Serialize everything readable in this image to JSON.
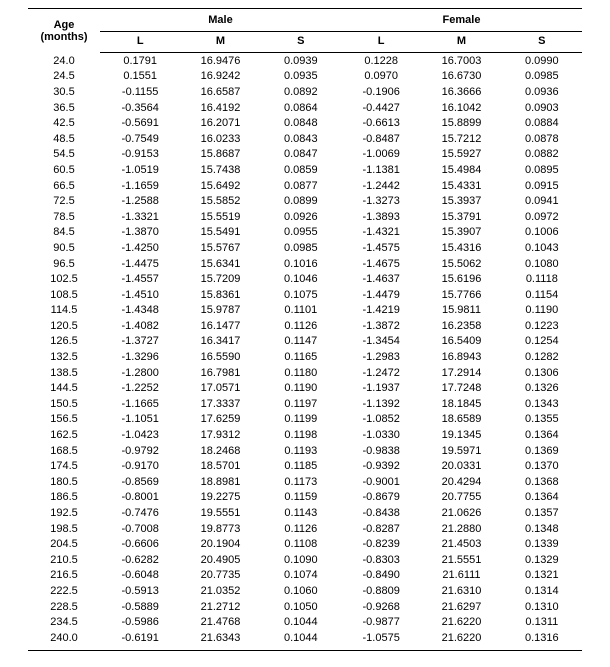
{
  "headers": {
    "age_line1": "Age",
    "age_line2": "(months)",
    "male": "Male",
    "female": "Female",
    "L": "L",
    "M": "M",
    "S": "S"
  },
  "rows": [
    {
      "age": "24.0",
      "ml": "0.1791",
      "mm": "16.9476",
      "ms": "0.0939",
      "fl": "0.1228",
      "fm": "16.7003",
      "fs": "0.0990"
    },
    {
      "age": "24.5",
      "ml": "0.1551",
      "mm": "16.9242",
      "ms": "0.0935",
      "fl": "0.0970",
      "fm": "16.6730",
      "fs": "0.0985"
    },
    {
      "age": "30.5",
      "ml": "-0.1155",
      "mm": "16.6587",
      "ms": "0.0892",
      "fl": "-0.1906",
      "fm": "16.3666",
      "fs": "0.0936"
    },
    {
      "age": "36.5",
      "ml": "-0.3564",
      "mm": "16.4192",
      "ms": "0.0864",
      "fl": "-0.4427",
      "fm": "16.1042",
      "fs": "0.0903"
    },
    {
      "age": "42.5",
      "ml": "-0.5691",
      "mm": "16.2071",
      "ms": "0.0848",
      "fl": "-0.6613",
      "fm": "15.8899",
      "fs": "0.0884"
    },
    {
      "age": "48.5",
      "ml": "-0.7549",
      "mm": "16.0233",
      "ms": "0.0843",
      "fl": "-0.8487",
      "fm": "15.7212",
      "fs": "0.0878"
    },
    {
      "age": "54.5",
      "ml": "-0.9153",
      "mm": "15.8687",
      "ms": "0.0847",
      "fl": "-1.0069",
      "fm": "15.5927",
      "fs": "0.0882"
    },
    {
      "age": "60.5",
      "ml": "-1.0519",
      "mm": "15.7438",
      "ms": "0.0859",
      "fl": "-1.1381",
      "fm": "15.4984",
      "fs": "0.0895"
    },
    {
      "age": "66.5",
      "ml": "-1.1659",
      "mm": "15.6492",
      "ms": "0.0877",
      "fl": "-1.2442",
      "fm": "15.4331",
      "fs": "0.0915"
    },
    {
      "age": "72.5",
      "ml": "-1.2588",
      "mm": "15.5852",
      "ms": "0.0899",
      "fl": "-1.3273",
      "fm": "15.3937",
      "fs": "0.0941"
    },
    {
      "age": "78.5",
      "ml": "-1.3321",
      "mm": "15.5519",
      "ms": "0.0926",
      "fl": "-1.3893",
      "fm": "15.3791",
      "fs": "0.0972"
    },
    {
      "age": "84.5",
      "ml": "-1.3870",
      "mm": "15.5491",
      "ms": "0.0955",
      "fl": "-1.4321",
      "fm": "15.3907",
      "fs": "0.1006"
    },
    {
      "age": "90.5",
      "ml": "-1.4250",
      "mm": "15.5767",
      "ms": "0.0985",
      "fl": "-1.4575",
      "fm": "15.4316",
      "fs": "0.1043"
    },
    {
      "age": "96.5",
      "ml": "-1.4475",
      "mm": "15.6341",
      "ms": "0.1016",
      "fl": "-1.4675",
      "fm": "15.5062",
      "fs": "0.1080"
    },
    {
      "age": "102.5",
      "ml": "-1.4557",
      "mm": "15.7209",
      "ms": "0.1046",
      "fl": "-1.4637",
      "fm": "15.6196",
      "fs": "0.1118"
    },
    {
      "age": "108.5",
      "ml": "-1.4510",
      "mm": "15.8361",
      "ms": "0.1075",
      "fl": "-1.4479",
      "fm": "15.7766",
      "fs": "0.1154"
    },
    {
      "age": "114.5",
      "ml": "-1.4348",
      "mm": "15.9787",
      "ms": "0.1101",
      "fl": "-1.4219",
      "fm": "15.9811",
      "fs": "0.1190"
    },
    {
      "age": "120.5",
      "ml": "-1.4082",
      "mm": "16.1477",
      "ms": "0.1126",
      "fl": "-1.3872",
      "fm": "16.2358",
      "fs": "0.1223"
    },
    {
      "age": "126.5",
      "ml": "-1.3727",
      "mm": "16.3417",
      "ms": "0.1147",
      "fl": "-1.3454",
      "fm": "16.5409",
      "fs": "0.1254"
    },
    {
      "age": "132.5",
      "ml": "-1.3296",
      "mm": "16.5590",
      "ms": "0.1165",
      "fl": "-1.2983",
      "fm": "16.8943",
      "fs": "0.1282"
    },
    {
      "age": "138.5",
      "ml": "-1.2800",
      "mm": "16.7981",
      "ms": "0.1180",
      "fl": "-1.2472",
      "fm": "17.2914",
      "fs": "0.1306"
    },
    {
      "age": "144.5",
      "ml": "-1.2252",
      "mm": "17.0571",
      "ms": "0.1190",
      "fl": "-1.1937",
      "fm": "17.7248",
      "fs": "0.1326"
    },
    {
      "age": "150.5",
      "ml": "-1.1665",
      "mm": "17.3337",
      "ms": "0.1197",
      "fl": "-1.1392",
      "fm": "18.1845",
      "fs": "0.1343"
    },
    {
      "age": "156.5",
      "ml": "-1.1051",
      "mm": "17.6259",
      "ms": "0.1199",
      "fl": "-1.0852",
      "fm": "18.6589",
      "fs": "0.1355"
    },
    {
      "age": "162.5",
      "ml": "-1.0423",
      "mm": "17.9312",
      "ms": "0.1198",
      "fl": "-1.0330",
      "fm": "19.1345",
      "fs": "0.1364"
    },
    {
      "age": "168.5",
      "ml": "-0.9792",
      "mm": "18.2468",
      "ms": "0.1193",
      "fl": "-0.9838",
      "fm": "19.5971",
      "fs": "0.1369"
    },
    {
      "age": "174.5",
      "ml": "-0.9170",
      "mm": "18.5701",
      "ms": "0.1185",
      "fl": "-0.9392",
      "fm": "20.0331",
      "fs": "0.1370"
    },
    {
      "age": "180.5",
      "ml": "-0.8569",
      "mm": "18.8981",
      "ms": "0.1173",
      "fl": "-0.9001",
      "fm": "20.4294",
      "fs": "0.1368"
    },
    {
      "age": "186.5",
      "ml": "-0.8001",
      "mm": "19.2275",
      "ms": "0.1159",
      "fl": "-0.8679",
      "fm": "20.7755",
      "fs": "0.1364"
    },
    {
      "age": "192.5",
      "ml": "-0.7476",
      "mm": "19.5551",
      "ms": "0.1143",
      "fl": "-0.8438",
      "fm": "21.0626",
      "fs": "0.1357"
    },
    {
      "age": "198.5",
      "ml": "-0.7008",
      "mm": "19.8773",
      "ms": "0.1126",
      "fl": "-0.8287",
      "fm": "21.2880",
      "fs": "0.1348"
    },
    {
      "age": "204.5",
      "ml": "-0.6606",
      "mm": "20.1904",
      "ms": "0.1108",
      "fl": "-0.8239",
      "fm": "21.4503",
      "fs": "0.1339"
    },
    {
      "age": "210.5",
      "ml": "-0.6282",
      "mm": "20.4905",
      "ms": "0.1090",
      "fl": "-0.8303",
      "fm": "21.5551",
      "fs": "0.1329"
    },
    {
      "age": "216.5",
      "ml": "-0.6048",
      "mm": "20.7735",
      "ms": "0.1074",
      "fl": "-0.8490",
      "fm": "21.6111",
      "fs": "0.1321"
    },
    {
      "age": "222.5",
      "ml": "-0.5913",
      "mm": "21.0352",
      "ms": "0.1060",
      "fl": "-0.8809",
      "fm": "21.6310",
      "fs": "0.1314"
    },
    {
      "age": "228.5",
      "ml": "-0.5889",
      "mm": "21.2712",
      "ms": "0.1050",
      "fl": "-0.9268",
      "fm": "21.6297",
      "fs": "0.1310"
    },
    {
      "age": "234.5",
      "ml": "-0.5986",
      "mm": "21.4768",
      "ms": "0.1044",
      "fl": "-0.9877",
      "fm": "21.6220",
      "fs": "0.1311"
    },
    {
      "age": "240.0",
      "ml": "-0.6191",
      "mm": "21.6343",
      "ms": "0.1044",
      "fl": "-1.0575",
      "fm": "21.6220",
      "fs": "0.1316"
    }
  ]
}
